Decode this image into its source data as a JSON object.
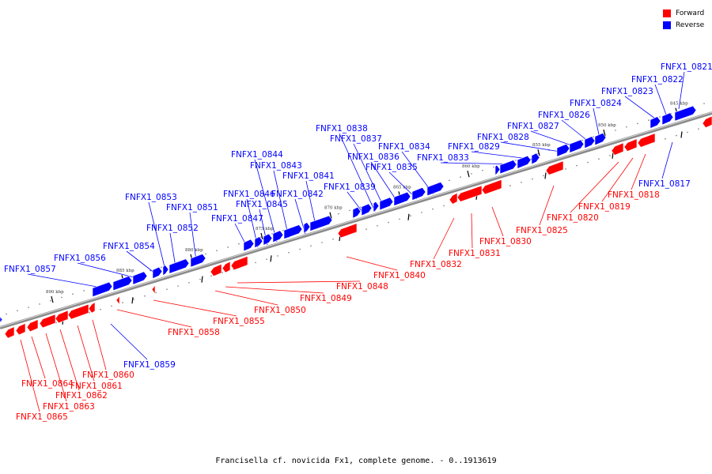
{
  "legend": {
    "forward": {
      "label": "Forward",
      "color": "#ff0000"
    },
    "reverse": {
      "label": "Reverse",
      "color": "#0000ff"
    }
  },
  "caption": "Francisella cf. novicida Fx1, complete genome. - 0..1913619",
  "ticks": [
    "845 kbp",
    "850 kbp",
    "855 kbp",
    "860 kbp",
    "865 kbp",
    "870 kbp",
    "875 kbp",
    "880 kbp",
    "885 kbp",
    "890 kbp"
  ],
  "genes": {
    "reverse": [
      "FNFX1_0821",
      "FNFX1_0822",
      "FNFX1_0823",
      "FNFX1_0824",
      "FNFX1_0826",
      "FNFX1_0827",
      "FNFX1_0828",
      "FNFX1_0829",
      "FNFX1_0833",
      "FNFX1_0834",
      "FNFX1_0835",
      "FNFX1_0836",
      "FNFX1_0837",
      "FNFX1_0838",
      "FNFX1_0839",
      "FNFX1_0841",
      "FNFX1_0842",
      "FNFX1_0843",
      "FNFX1_0844",
      "FNFX1_0845",
      "FNFX1_0846",
      "FNFX1_0847",
      "FNFX1_0851",
      "FNFX1_0852",
      "FNFX1_0853",
      "FNFX1_0854",
      "FNFX1_0856",
      "FNFX1_0857",
      "FNFX1_0859",
      "FNFX1_0817"
    ],
    "forward": [
      "FNFX1_0818",
      "FNFX1_0819",
      "FNFX1_0820",
      "FNFX1_0825",
      "FNFX1_0830",
      "FNFX1_0831",
      "FNFX1_0832",
      "FNFX1_0840",
      "FNFX1_0848",
      "FNFX1_0849",
      "FNFX1_0850",
      "FNFX1_0855",
      "FNFX1_0858",
      "FNFX1_0860",
      "FNFX1_0861",
      "FNFX1_0862",
      "FNFX1_0863",
      "FNFX1_0864",
      "FNFX1_0865"
    ]
  }
}
